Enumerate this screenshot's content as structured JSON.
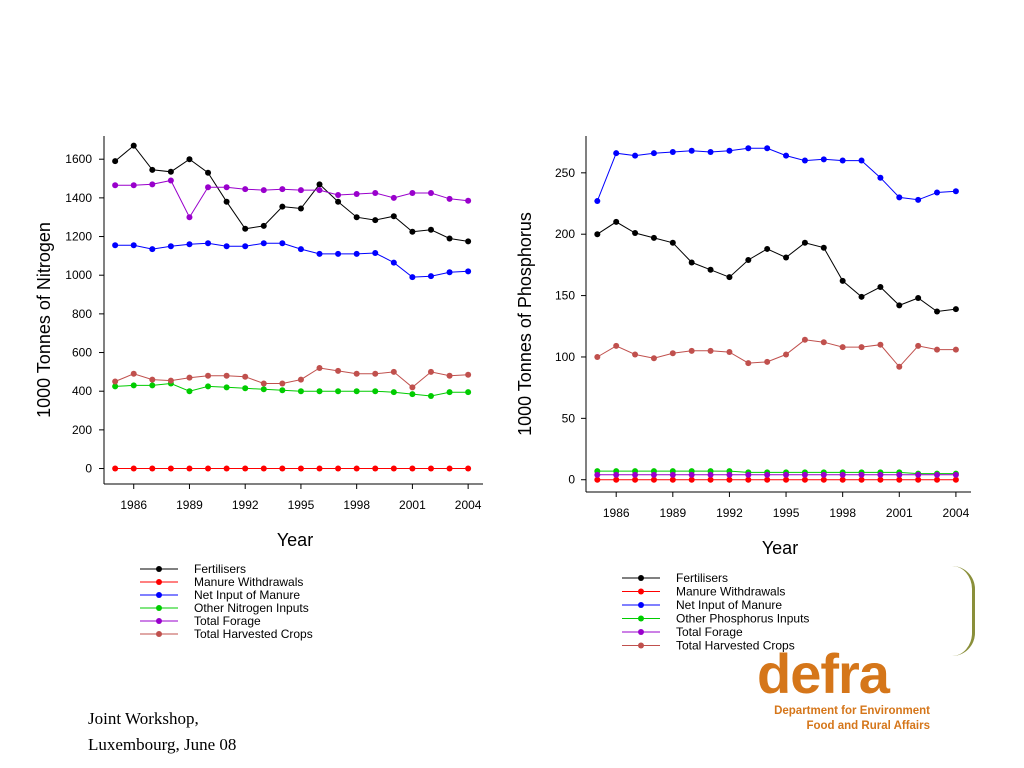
{
  "footer": {
    "line1": "Joint Workshop,",
    "line2": "Luxembourg, June 08"
  },
  "logo": {
    "word": "defra",
    "line1": "Department for Environment",
    "line2": "Food and Rural Affairs",
    "color": "#d5761a"
  },
  "chart_data": [
    {
      "type": "line",
      "title": "",
      "xlabel": "Year",
      "ylabel": "1000 Tonnes of Nitrogen",
      "xlim": [
        1984.4,
        2004.8
      ],
      "ylim": [
        -80,
        1720
      ],
      "x_ticks": [
        1986,
        1989,
        1992,
        1995,
        1998,
        2001,
        2004
      ],
      "y_ticks": [
        0,
        200,
        400,
        600,
        800,
        1000,
        1200,
        1400,
        1600
      ],
      "grid": false,
      "legend_position": "below",
      "x": [
        1985,
        1986,
        1987,
        1988,
        1989,
        1990,
        1991,
        1992,
        1993,
        1994,
        1995,
        1996,
        1997,
        1998,
        1999,
        2000,
        2001,
        2002,
        2003,
        2004
      ],
      "series": [
        {
          "name": "Fertilisers",
          "color": "#000000",
          "values": [
            1590,
            1670,
            1545,
            1535,
            1600,
            1530,
            1380,
            1240,
            1255,
            1355,
            1345,
            1470,
            1380,
            1300,
            1285,
            1305,
            1225,
            1235,
            1190,
            1175
          ]
        },
        {
          "name": "Manure Withdrawals",
          "color": "#ff0000",
          "values": [
            0,
            0,
            0,
            0,
            0,
            0,
            0,
            0,
            0,
            0,
            0,
            0,
            0,
            0,
            0,
            0,
            0,
            0,
            0,
            0
          ]
        },
        {
          "name": "Net Input of Manure",
          "color": "#0000ff",
          "values": [
            1155,
            1155,
            1135,
            1150,
            1160,
            1165,
            1150,
            1150,
            1165,
            1165,
            1135,
            1110,
            1110,
            1110,
            1115,
            1065,
            990,
            995,
            1015,
            1020
          ]
        },
        {
          "name": "Other Nitrogen Inputs",
          "color": "#00cc00",
          "values": [
            425,
            430,
            430,
            440,
            400,
            425,
            420,
            415,
            410,
            405,
            400,
            400,
            400,
            400,
            400,
            395,
            385,
            375,
            395,
            395
          ]
        },
        {
          "name": "Total Forage",
          "color": "#9900cc",
          "values": [
            1465,
            1465,
            1470,
            1490,
            1300,
            1455,
            1455,
            1445,
            1440,
            1445,
            1440,
            1440,
            1415,
            1420,
            1425,
            1400,
            1425,
            1425,
            1395,
            1385
          ]
        },
        {
          "name": "Total Harvested Crops",
          "color": "#c0504d",
          "values": [
            450,
            490,
            460,
            455,
            470,
            480,
            480,
            475,
            440,
            440,
            460,
            520,
            505,
            490,
            490,
            500,
            420,
            500,
            480,
            485
          ]
        }
      ]
    },
    {
      "type": "line",
      "title": "",
      "xlabel": "Year",
      "ylabel": "1000 Tonnes of Phosphorus",
      "xlim": [
        1984.4,
        2004.8
      ],
      "ylim": [
        -10,
        280
      ],
      "x_ticks": [
        1986,
        1989,
        1992,
        1995,
        1998,
        2001,
        2004
      ],
      "y_ticks": [
        0,
        50,
        100,
        150,
        200,
        250
      ],
      "grid": false,
      "legend_position": "below",
      "x": [
        1985,
        1986,
        1987,
        1988,
        1989,
        1990,
        1991,
        1992,
        1993,
        1994,
        1995,
        1996,
        1997,
        1998,
        1999,
        2000,
        2001,
        2002,
        2003,
        2004
      ],
      "series": [
        {
          "name": "Fertilisers",
          "color": "#000000",
          "values": [
            200,
            210,
            201,
            197,
            193,
            177,
            171,
            165,
            179,
            188,
            181,
            193,
            189,
            162,
            149,
            157,
            142,
            148,
            137,
            139
          ]
        },
        {
          "name": "Manure Withdrawals",
          "color": "#ff0000",
          "values": [
            0,
            0,
            0,
            0,
            0,
            0,
            0,
            0,
            0,
            0,
            0,
            0,
            0,
            0,
            0,
            0,
            0,
            0,
            0,
            0
          ]
        },
        {
          "name": "Net Input of Manure",
          "color": "#0000ff",
          "values": [
            227,
            266,
            264,
            266,
            267,
            268,
            267,
            268,
            270,
            270,
            264,
            260,
            261,
            260,
            260,
            246,
            230,
            228,
            234,
            235
          ]
        },
        {
          "name": "Other Phosphorus Inputs",
          "color": "#00cc00",
          "values": [
            7,
            7,
            7,
            7,
            7,
            7,
            7,
            7,
            6,
            6,
            6,
            6,
            6,
            6,
            6,
            6,
            6,
            5,
            5,
            5
          ]
        },
        {
          "name": "Total Forage",
          "color": "#9900cc",
          "values": [
            4,
            4,
            4,
            4,
            4,
            4,
            4,
            4,
            4,
            4,
            4,
            4,
            4,
            4,
            4,
            4,
            4,
            4,
            4,
            4
          ]
        },
        {
          "name": "Total Harvested Crops",
          "color": "#c0504d",
          "values": [
            100,
            109,
            102,
            99,
            103,
            105,
            105,
            104,
            95,
            96,
            102,
            114,
            112,
            108,
            108,
            110,
            92,
            109,
            106,
            106
          ]
        }
      ]
    }
  ]
}
